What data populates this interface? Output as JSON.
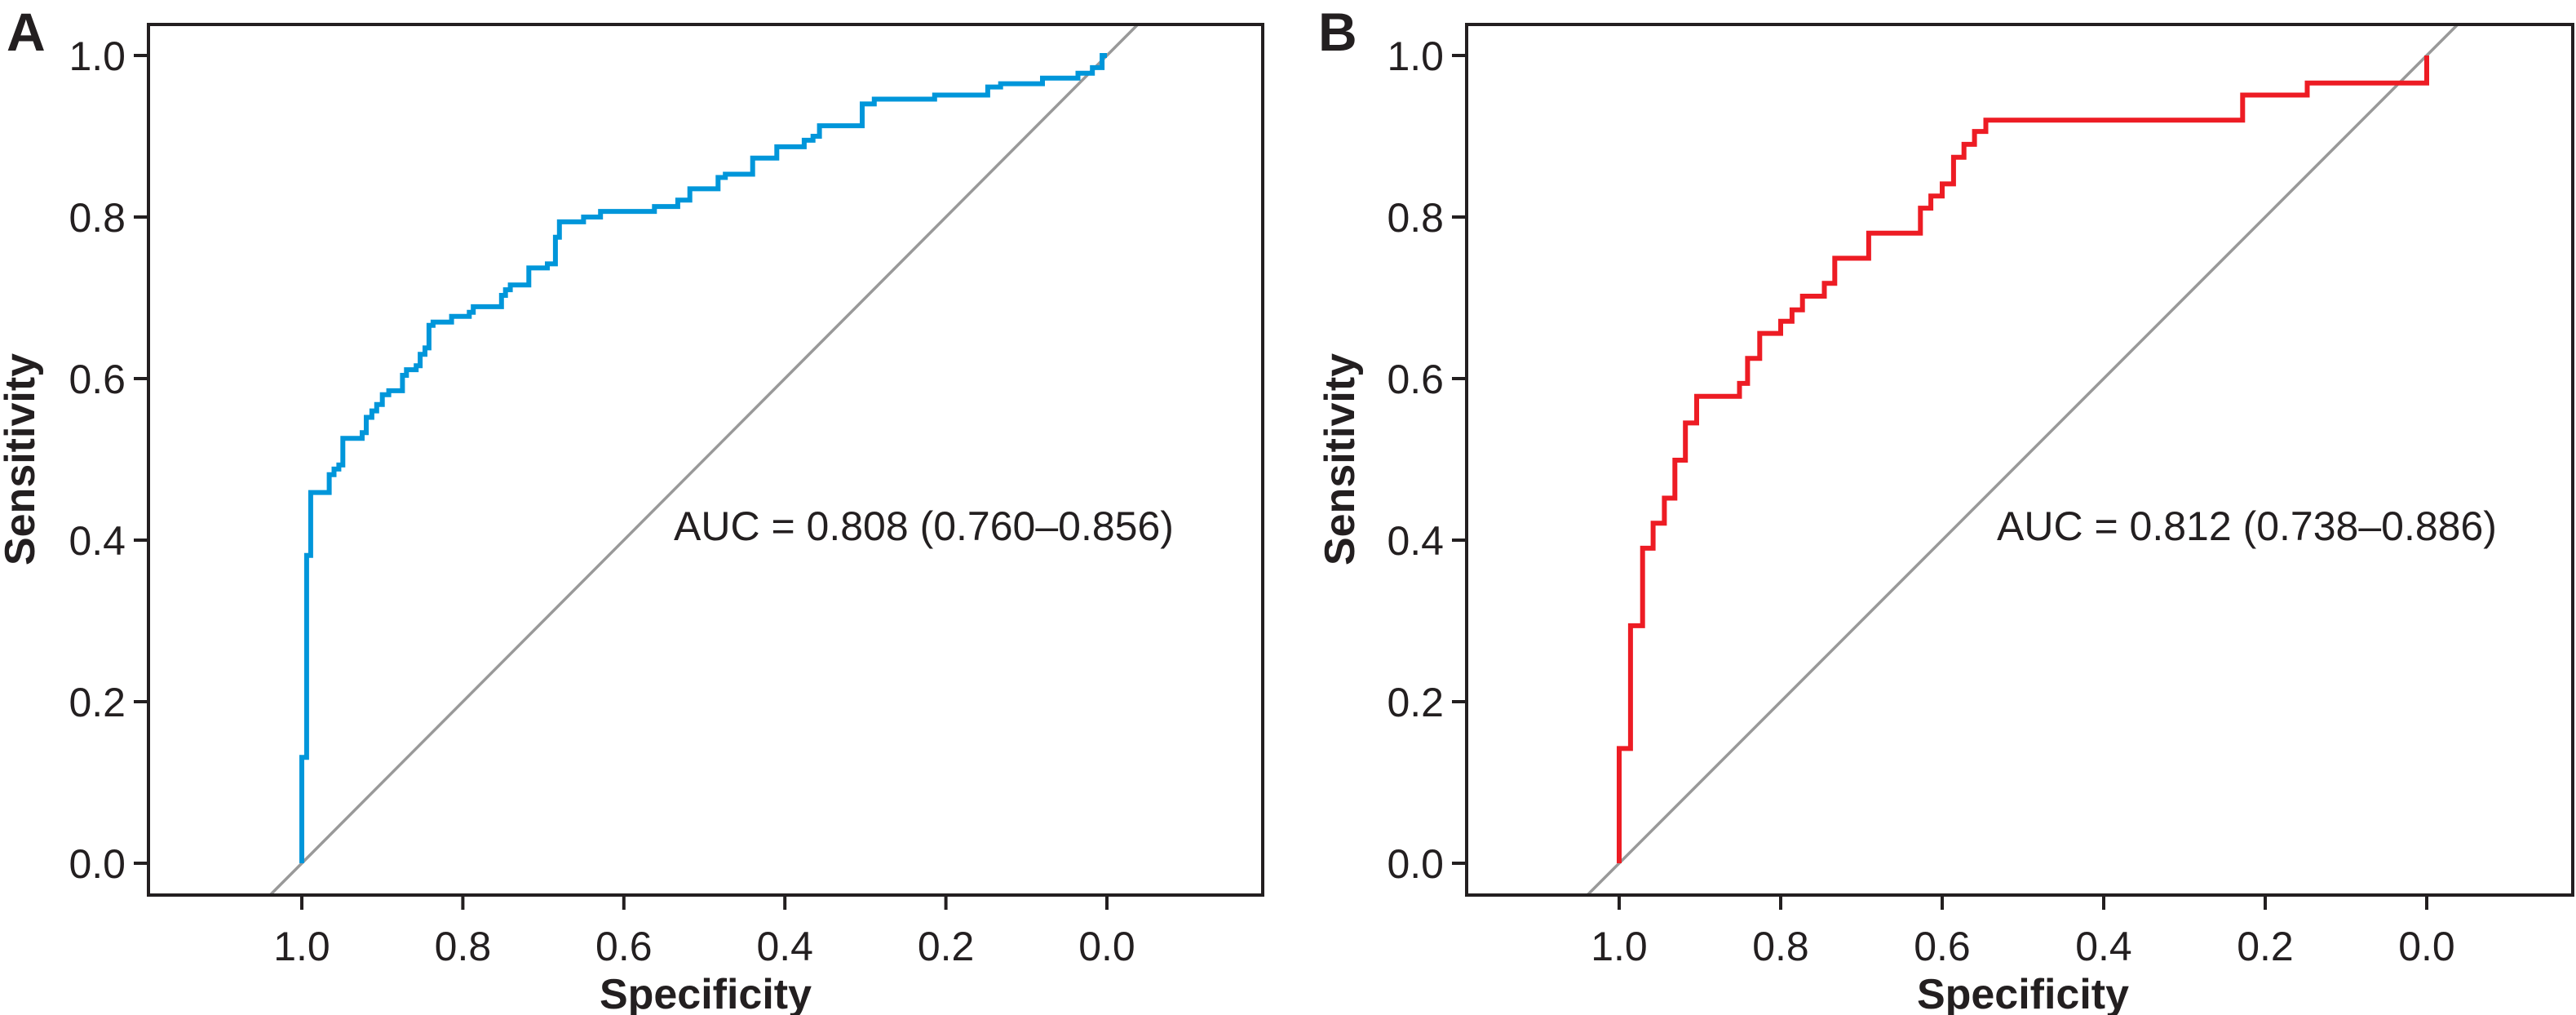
{
  "chart_data": [
    {
      "type": "line",
      "panel_label": "A",
      "xlabel": "Specificity",
      "ylabel": "Sensitivity",
      "xlim": [
        1.0,
        0.0
      ],
      "x_reversed": true,
      "ylim": [
        0.0,
        1.0
      ],
      "xticks": [
        "1.0",
        "0.8",
        "0.6",
        "0.4",
        "0.2",
        "0.0"
      ],
      "yticks": [
        "0.0",
        "0.2",
        "0.4",
        "0.6",
        "0.8",
        "1.0"
      ],
      "grid": false,
      "annotation": "AUC = 0.808 (0.760–0.856)",
      "reference_line": "diagonal",
      "color": "#0096da",
      "reference_color": "#999999",
      "series": [
        {
          "step": true,
          "points": [
            [
              1.0,
              0.0
            ],
            [
              1.0,
              0.131
            ],
            [
              0.994,
              0.131
            ],
            [
              0.994,
              0.381
            ],
            [
              0.989,
              0.381
            ],
            [
              0.989,
              0.459
            ],
            [
              0.966,
              0.459
            ],
            [
              0.966,
              0.481
            ],
            [
              0.96,
              0.481
            ],
            [
              0.96,
              0.488
            ],
            [
              0.954,
              0.488
            ],
            [
              0.954,
              0.493
            ],
            [
              0.949,
              0.493
            ],
            [
              0.949,
              0.526
            ],
            [
              0.925,
              0.526
            ],
            [
              0.925,
              0.533
            ],
            [
              0.92,
              0.533
            ],
            [
              0.92,
              0.552
            ],
            [
              0.913,
              0.552
            ],
            [
              0.913,
              0.56
            ],
            [
              0.907,
              0.56
            ],
            [
              0.907,
              0.568
            ],
            [
              0.9,
              0.568
            ],
            [
              0.9,
              0.58
            ],
            [
              0.892,
              0.58
            ],
            [
              0.892,
              0.585
            ],
            [
              0.875,
              0.585
            ],
            [
              0.875,
              0.604
            ],
            [
              0.87,
              0.604
            ],
            [
              0.87,
              0.611
            ],
            [
              0.858,
              0.611
            ],
            [
              0.858,
              0.616
            ],
            [
              0.853,
              0.616
            ],
            [
              0.853,
              0.63
            ],
            [
              0.847,
              0.63
            ],
            [
              0.847,
              0.638
            ],
            [
              0.842,
              0.638
            ],
            [
              0.842,
              0.666
            ],
            [
              0.837,
              0.666
            ],
            [
              0.837,
              0.67
            ],
            [
              0.814,
              0.67
            ],
            [
              0.814,
              0.677
            ],
            [
              0.792,
              0.677
            ],
            [
              0.792,
              0.682
            ],
            [
              0.787,
              0.682
            ],
            [
              0.787,
              0.689
            ],
            [
              0.752,
              0.689
            ],
            [
              0.752,
              0.703
            ],
            [
              0.747,
              0.703
            ],
            [
              0.747,
              0.71
            ],
            [
              0.741,
              0.71
            ],
            [
              0.741,
              0.716
            ],
            [
              0.718,
              0.716
            ],
            [
              0.718,
              0.737
            ],
            [
              0.695,
              0.737
            ],
            [
              0.695,
              0.742
            ],
            [
              0.685,
              0.742
            ],
            [
              0.685,
              0.775
            ],
            [
              0.68,
              0.775
            ],
            [
              0.68,
              0.794
            ],
            [
              0.65,
              0.794
            ],
            [
              0.65,
              0.8
            ],
            [
              0.629,
              0.8
            ],
            [
              0.629,
              0.807
            ],
            [
              0.562,
              0.807
            ],
            [
              0.562,
              0.813
            ],
            [
              0.533,
              0.813
            ],
            [
              0.533,
              0.821
            ],
            [
              0.518,
              0.821
            ],
            [
              0.518,
              0.835
            ],
            [
              0.483,
              0.835
            ],
            [
              0.483,
              0.849
            ],
            [
              0.474,
              0.849
            ],
            [
              0.474,
              0.853
            ],
            [
              0.44,
              0.853
            ],
            [
              0.44,
              0.873
            ],
            [
              0.41,
              0.873
            ],
            [
              0.41,
              0.887
            ],
            [
              0.376,
              0.887
            ],
            [
              0.376,
              0.895
            ],
            [
              0.365,
              0.895
            ],
            [
              0.365,
              0.9
            ],
            [
              0.357,
              0.9
            ],
            [
              0.357,
              0.913
            ],
            [
              0.304,
              0.913
            ],
            [
              0.304,
              0.94
            ],
            [
              0.289,
              0.94
            ],
            [
              0.289,
              0.946
            ],
            [
              0.214,
              0.946
            ],
            [
              0.214,
              0.951
            ],
            [
              0.148,
              0.951
            ],
            [
              0.148,
              0.961
            ],
            [
              0.132,
              0.961
            ],
            [
              0.132,
              0.965
            ],
            [
              0.08,
              0.965
            ],
            [
              0.08,
              0.972
            ],
            [
              0.036,
              0.972
            ],
            [
              0.036,
              0.978
            ],
            [
              0.018,
              0.978
            ],
            [
              0.018,
              0.985
            ],
            [
              0.006,
              0.985
            ],
            [
              0.006,
              1.0
            ],
            [
              0.0,
              1.0
            ]
          ]
        }
      ]
    },
    {
      "type": "line",
      "panel_label": "B",
      "xlabel": "Specificity",
      "ylabel": "Sensitivity",
      "xlim": [
        1.0,
        0.0
      ],
      "x_reversed": true,
      "ylim": [
        0.0,
        1.0
      ],
      "xticks": [
        "1.0",
        "0.8",
        "0.6",
        "0.4",
        "0.2",
        "0.0"
      ],
      "yticks": [
        "0.0",
        "0.2",
        "0.4",
        "0.6",
        "0.8",
        "1.0"
      ],
      "grid": false,
      "annotation": "AUC = 0.812 (0.738–0.886)",
      "reference_line": "diagonal",
      "color": "#ed1c24",
      "reference_color": "#999999",
      "series": [
        {
          "step": true,
          "points": [
            [
              1.0,
              0.0
            ],
            [
              1.0,
              0.142
            ],
            [
              0.986,
              0.142
            ],
            [
              0.986,
              0.294
            ],
            [
              0.971,
              0.294
            ],
            [
              0.971,
              0.39
            ],
            [
              0.958,
              0.39
            ],
            [
              0.958,
              0.421
            ],
            [
              0.944,
              0.421
            ],
            [
              0.944,
              0.452
            ],
            [
              0.931,
              0.452
            ],
            [
              0.931,
              0.499
            ],
            [
              0.918,
              0.499
            ],
            [
              0.918,
              0.545
            ],
            [
              0.904,
              0.545
            ],
            [
              0.904,
              0.578
            ],
            [
              0.851,
              0.578
            ],
            [
              0.851,
              0.594
            ],
            [
              0.841,
              0.594
            ],
            [
              0.841,
              0.625
            ],
            [
              0.826,
              0.625
            ],
            [
              0.826,
              0.656
            ],
            [
              0.8,
              0.656
            ],
            [
              0.8,
              0.671
            ],
            [
              0.786,
              0.671
            ],
            [
              0.786,
              0.685
            ],
            [
              0.773,
              0.685
            ],
            [
              0.773,
              0.702
            ],
            [
              0.746,
              0.702
            ],
            [
              0.746,
              0.718
            ],
            [
              0.733,
              0.718
            ],
            [
              0.733,
              0.749
            ],
            [
              0.691,
              0.749
            ],
            [
              0.691,
              0.78
            ],
            [
              0.627,
              0.78
            ],
            [
              0.627,
              0.811
            ],
            [
              0.614,
              0.811
            ],
            [
              0.614,
              0.826
            ],
            [
              0.6,
              0.826
            ],
            [
              0.6,
              0.841
            ],
            [
              0.586,
              0.841
            ],
            [
              0.586,
              0.874
            ],
            [
              0.573,
              0.874
            ],
            [
              0.573,
              0.89
            ],
            [
              0.56,
              0.89
            ],
            [
              0.56,
              0.906
            ],
            [
              0.546,
              0.906
            ],
            [
              0.546,
              0.92
            ],
            [
              0.228,
              0.92
            ],
            [
              0.228,
              0.951
            ],
            [
              0.148,
              0.951
            ],
            [
              0.148,
              0.966
            ],
            [
              0.0,
              0.966
            ],
            [
              0.0,
              1.0
            ]
          ]
        }
      ]
    }
  ]
}
